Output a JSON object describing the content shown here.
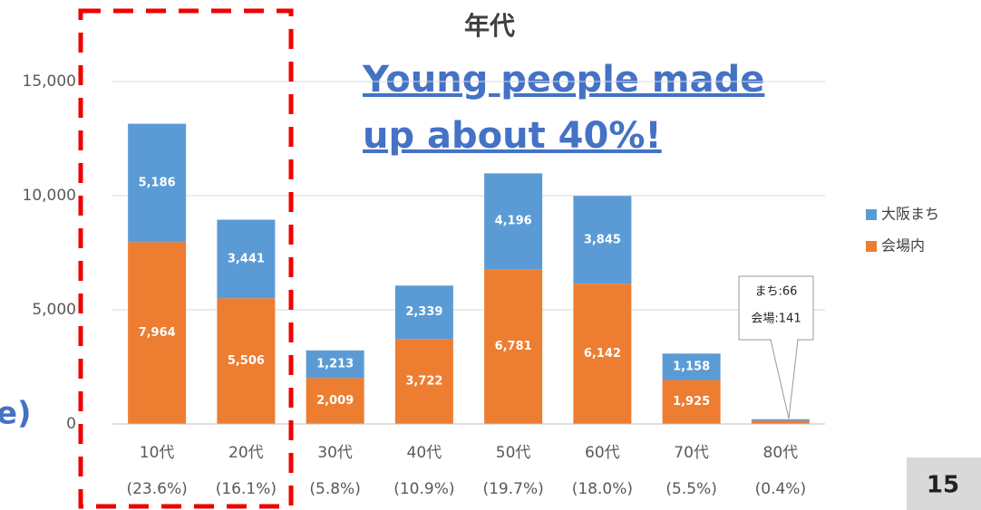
{
  "chart_data": {
    "type": "stacked_bar",
    "title": "年代",
    "annotation": [
      "Young people made",
      "up about 40%!"
    ],
    "categories": [
      "10代",
      "20代",
      "30代",
      "40代",
      "50代",
      "60代",
      "70代",
      "80代"
    ],
    "category_sublabels": [
      "(23.6%)",
      "(16.1%)",
      "(5.8%)",
      "(10.9%)",
      "(19.7%)",
      "(18.0%)",
      "(5.5%)",
      "(0.4%)"
    ],
    "series": [
      {
        "name": "大阪まち",
        "color": "#5b9bd5",
        "values": [
          5186,
          3441,
          1213,
          2339,
          4196,
          3845,
          1158,
          66
        ],
        "value_labels": [
          "5,186",
          "3,441",
          "1,213",
          "2,339",
          "4,196",
          "3,845",
          "1,158",
          null
        ]
      },
      {
        "name": "会場内",
        "color": "#ed7d31",
        "values": [
          7964,
          5506,
          2009,
          3722,
          6781,
          6142,
          1925,
          141
        ],
        "value_labels": [
          "7,964",
          "5,506",
          "2,009",
          "3,722",
          "6,781",
          "6,142",
          "1,925",
          null
        ]
      }
    ],
    "callout": [
      "まち:66",
      "会場:141"
    ],
    "ylim": [
      0,
      15000
    ],
    "yticks": [
      0,
      {
        "value": 5000,
        "label": "5,000"
      },
      {
        "value": 10000,
        "label": "10,000"
      },
      {
        "value": 15000,
        "label": "15,000"
      }
    ],
    "grid": true,
    "legend": "right"
  },
  "side_text": "e)",
  "page_number": "15"
}
